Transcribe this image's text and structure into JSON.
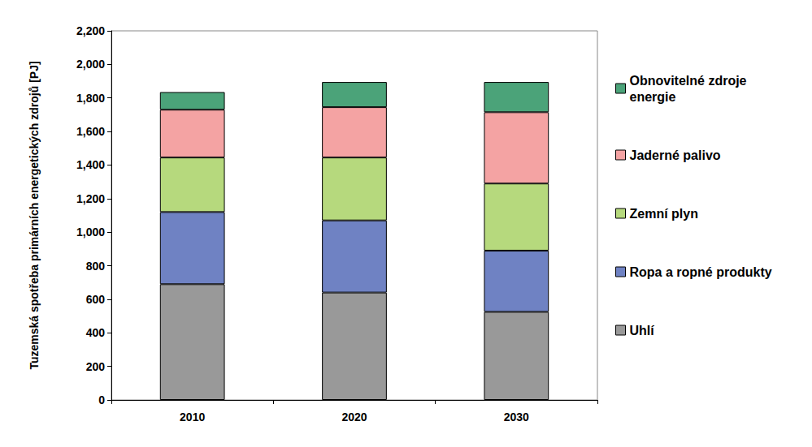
{
  "chart_data": {
    "type": "bar",
    "stacked": true,
    "ylabel": "Tuzemská spotřeba primárních energetických zdrojů [PJ]",
    "categories": [
      "2010",
      "2020",
      "2030"
    ],
    "series": [
      {
        "name": "Uhlí",
        "color": "#999999",
        "values": [
          690,
          640,
          525
        ]
      },
      {
        "name": "Ropa a ropné produkty",
        "color": "#6f82c3",
        "values": [
          430,
          430,
          365
        ]
      },
      {
        "name": "Zemní plyn",
        "color": "#b6d97d",
        "values": [
          325,
          375,
          400
        ]
      },
      {
        "name": "Jaderné palivo",
        "color": "#f4a3a3",
        "values": [
          285,
          300,
          425
        ]
      },
      {
        "name": "Obnovitelné zdroje energie",
        "color": "#4ba379",
        "values": [
          105,
          150,
          180
        ]
      }
    ],
    "ylim": [
      0,
      2200
    ],
    "yticks": [
      0,
      200,
      400,
      600,
      800,
      1000,
      1200,
      1400,
      1600,
      1800,
      2000,
      2200
    ],
    "grid": false,
    "legend": "right"
  }
}
